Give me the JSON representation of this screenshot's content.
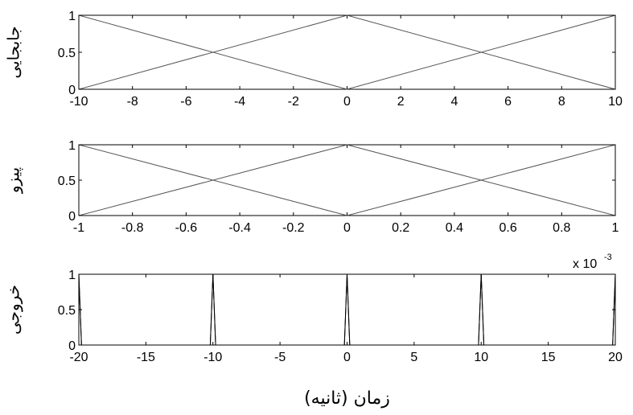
{
  "chart_data": [
    {
      "type": "line",
      "ylabel": "جابجایی",
      "xlim": [
        -10,
        10
      ],
      "ylim": [
        0,
        1
      ],
      "x_ticks": [
        -10,
        -8,
        -6,
        -4,
        -2,
        0,
        2,
        4,
        6,
        8,
        10
      ],
      "x_tick_labels": [
        "-10",
        "-8",
        "-6",
        "-4",
        "-2",
        "0",
        "2",
        "4",
        "6",
        "8",
        "10"
      ],
      "y_ticks": [
        0,
        0.5,
        1
      ],
      "y_tick_labels": [
        "0",
        "0.5",
        "1"
      ],
      "series": [
        {
          "x": [
            -10,
            0,
            10
          ],
          "y": [
            1,
            0,
            1
          ]
        },
        {
          "x": [
            -10,
            0,
            10
          ],
          "y": [
            0,
            1,
            0
          ]
        }
      ],
      "line_color": "#555555"
    },
    {
      "type": "line",
      "ylabel": "پیزو",
      "xlim": [
        -1,
        1
      ],
      "ylim": [
        0,
        1
      ],
      "x_ticks": [
        -1,
        -0.8,
        -0.6,
        -0.4,
        -0.2,
        0,
        0.2,
        0.4,
        0.6,
        0.8,
        1
      ],
      "x_tick_labels": [
        "-1",
        "-0.8",
        "-0.6",
        "-0.4",
        "-0.2",
        "0",
        "0.2",
        "0.4",
        "0.6",
        "0.8",
        "1"
      ],
      "y_ticks": [
        0,
        0.5,
        1
      ],
      "y_tick_labels": [
        "0",
        "0.5",
        "1"
      ],
      "series": [
        {
          "x": [
            -1,
            0,
            1
          ],
          "y": [
            1,
            0,
            1
          ]
        },
        {
          "x": [
            -1,
            0,
            1
          ],
          "y": [
            0,
            1,
            0
          ]
        }
      ],
      "line_color": "#555555"
    },
    {
      "type": "line",
      "ylabel": "خروجی",
      "xlabel": "زمان (ثانیه)",
      "exponent_label": "x 10",
      "exponent_power": "-3",
      "xlim": [
        -20,
        20
      ],
      "ylim": [
        0,
        1
      ],
      "x_ticks": [
        -20,
        -15,
        -10,
        -5,
        0,
        5,
        10,
        15,
        20
      ],
      "x_tick_labels": [
        "-20",
        "-15",
        "-10",
        "-5",
        "0",
        "5",
        "10",
        "15",
        "20"
      ],
      "y_ticks": [
        0,
        0.5,
        1
      ],
      "y_tick_labels": [
        "0",
        "0.5",
        "1"
      ],
      "series": [
        {
          "x": [
            -20,
            -19.8,
            -10.2,
            -10,
            -9.8,
            -0.2,
            0,
            0.2,
            9.8,
            10,
            10.2,
            19.8,
            20
          ],
          "y": [
            1,
            0,
            0,
            1,
            0,
            0,
            1,
            0,
            0,
            1,
            0,
            0,
            1
          ]
        },
        {
          "x": [
            -20.2,
            -20,
            -19.8
          ],
          "y": [
            0,
            1,
            0
          ]
        },
        {
          "x": [
            -10.2,
            -10,
            -9.8
          ],
          "y": [
            0,
            1,
            0
          ]
        },
        {
          "x": [
            -0.2,
            0,
            0.2
          ],
          "y": [
            0,
            1,
            0
          ]
        },
        {
          "x": [
            9.8,
            10,
            10.2
          ],
          "y": [
            0,
            1,
            0
          ]
        },
        {
          "x": [
            19.8,
            20,
            20.2
          ],
          "y": [
            0,
            1,
            0
          ]
        }
      ],
      "line_color": "#000000"
    }
  ]
}
